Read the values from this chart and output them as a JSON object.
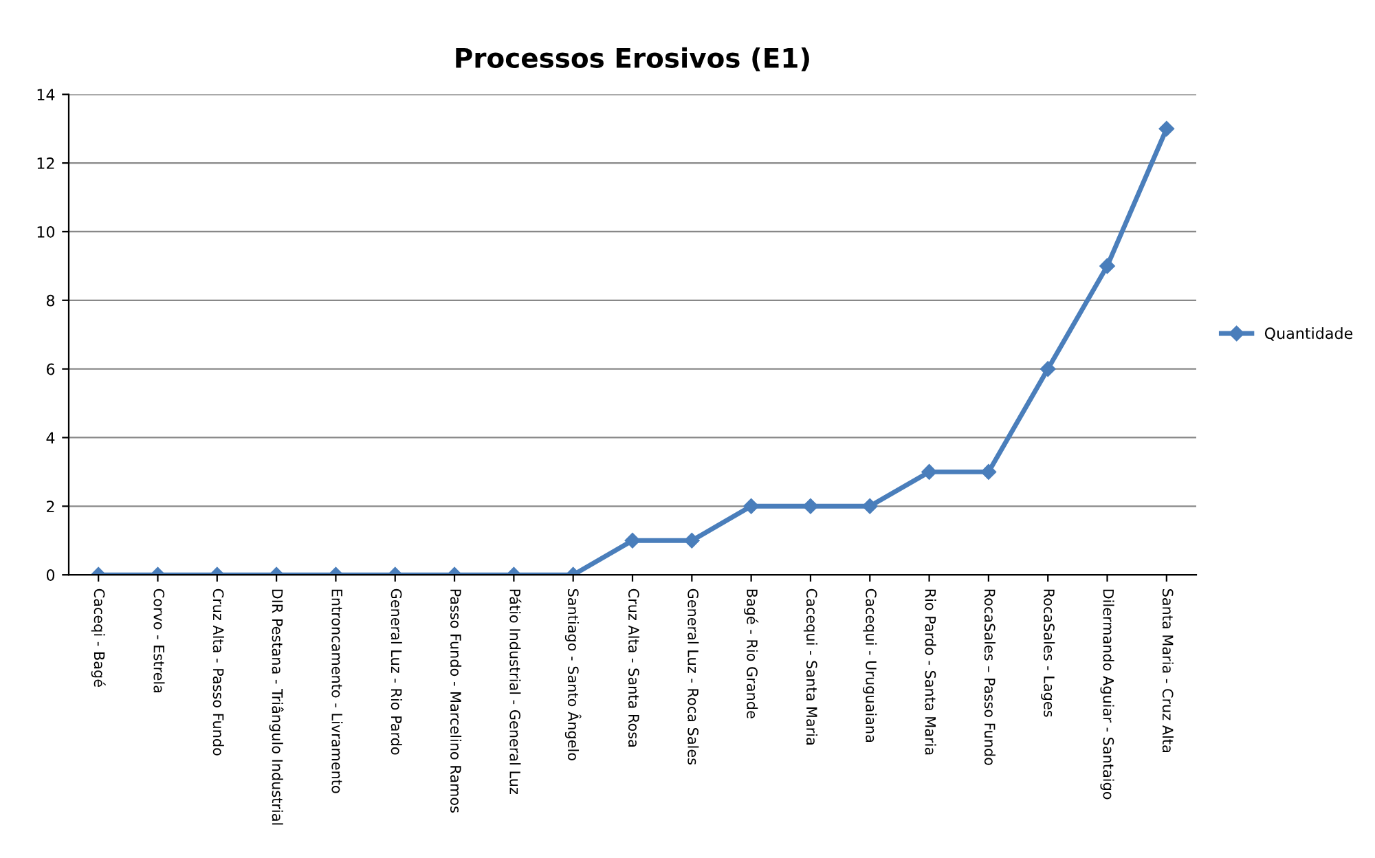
{
  "chart_data": {
    "type": "line",
    "title": "Processos Erosivos (E1)",
    "categories": [
      "Caceqi - Bagé",
      "Corvo - Estrela",
      "Cruz Alta - Passo Fundo",
      "DIR Pestana - Triângulo Industrial",
      "Entroncamento - Livramento",
      "General Luz - Rio Pardo",
      "Passo Fundo - Marcelino Ramos",
      "Pátio Industrial - General Luz",
      "Santiago - Santo Ângelo",
      "Cruz Alta - Santa Rosa",
      "General Luz - Roca Sales",
      "Bagé - Rio Grande",
      "Cacequi - Santa Maria",
      "Cacequi - Uruguaiana",
      "Rio Pardo - Santa Maria",
      "RocaSales – Passo Fundo",
      "RocaSales - Lages",
      "Dilermando Aguiar - Santaigo",
      "Santa Maria - Cruz Alta"
    ],
    "series": [
      {
        "name": "Quantidade",
        "color": "#4a7ebb",
        "values": [
          0,
          0,
          0,
          0,
          0,
          0,
          0,
          0,
          0,
          1,
          1,
          2,
          2,
          2,
          3,
          3,
          6,
          9,
          13
        ]
      }
    ],
    "ylim": [
      0,
      14
    ],
    "yticks": [
      0,
      2,
      4,
      6,
      8,
      10,
      12,
      14
    ],
    "grid": "y",
    "legend": "right",
    "marker": "diamond",
    "line_style": "solid"
  }
}
